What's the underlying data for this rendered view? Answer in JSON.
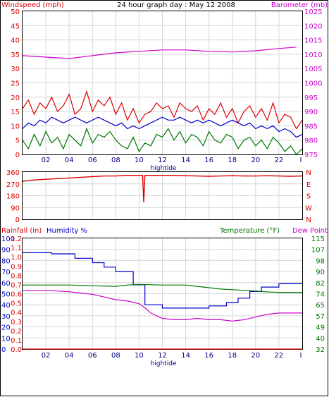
{
  "header": {
    "left_label": "Windspeed (mph)",
    "title": "24 hour graph day : May 12 2008",
    "right_label": "Barometer (mb)"
  },
  "colors": {
    "background": "#ffffff",
    "frame": "#000000",
    "grid": "#d6d6d6",
    "red": "#dd0000",
    "blue": "#0000cc",
    "green": "#007700",
    "magenta": "#cc00cc",
    "navy": "#000080"
  },
  "chart_data": [
    {
      "id": "wind-barometer",
      "type": "line",
      "title": "24 hour graph day : May 12 2008",
      "left_axis_label": "Windspeed (mph)",
      "right_axis_label": "Barometer (mb)",
      "x_tick_labels": [
        "02",
        "04",
        "06",
        "08",
        "10",
        "12",
        "14",
        "16",
        "18",
        "20",
        "22"
      ],
      "x_end_label": "I",
      "x_marker_label": "hightide",
      "xlim": [
        0,
        24
      ],
      "left_ylim": [
        0,
        50
      ],
      "left_ticks": [
        "0",
        "5",
        "10",
        "15",
        "20",
        "25",
        "30",
        "35",
        "40",
        "45",
        "50"
      ],
      "right_ylim": [
        975,
        1025
      ],
      "right_ticks": [
        "975",
        "980",
        "985",
        "990",
        "995",
        "1000",
        "1005",
        "1010",
        "1015",
        "1020",
        "1025"
      ],
      "grid": true,
      "series": [
        {
          "color": "#dd0000",
          "axis": "left",
          "x": [
            0.0,
            0.5,
            1.0,
            1.5,
            2.0,
            2.5,
            3.0,
            3.5,
            4.0,
            4.5,
            5.0,
            5.5,
            6.0,
            6.5,
            7.0,
            7.5,
            8.0,
            8.5,
            9.0,
            9.5,
            10.0,
            10.5,
            11.0,
            11.5,
            12.0,
            12.5,
            13.0,
            13.5,
            14.0,
            14.5,
            15.0,
            15.5,
            16.0,
            16.5,
            17.0,
            17.5,
            18.0,
            18.5,
            19.0,
            19.5,
            20.0,
            20.5,
            21.0,
            21.5,
            22.0,
            22.5,
            23.0,
            23.5,
            24.0
          ],
          "values": [
            16,
            19,
            14,
            18,
            16,
            20,
            15,
            17,
            21,
            14,
            16,
            22,
            15,
            19,
            17,
            20,
            14,
            18,
            12,
            16,
            11,
            14,
            15,
            18,
            16,
            17,
            13,
            18,
            16,
            15,
            17,
            12,
            16,
            14,
            18,
            13,
            16,
            11,
            15,
            17,
            13,
            16,
            12,
            18,
            11,
            14,
            13,
            9,
            12
          ]
        },
        {
          "color": "#0000cc",
          "axis": "left",
          "x": [
            0.0,
            0.5,
            1.0,
            1.5,
            2.0,
            2.5,
            3.0,
            3.5,
            4.0,
            4.5,
            5.0,
            5.5,
            6.0,
            6.5,
            7.0,
            7.5,
            8.0,
            8.5,
            9.0,
            9.5,
            10.0,
            10.5,
            11.0,
            11.5,
            12.0,
            12.5,
            13.0,
            13.5,
            14.0,
            14.5,
            15.0,
            15.5,
            16.0,
            16.5,
            17.0,
            17.5,
            18.0,
            18.5,
            19.0,
            19.5,
            20.0,
            20.5,
            21.0,
            21.5,
            22.0,
            22.5,
            23.0,
            23.5,
            24.0
          ],
          "values": [
            9,
            11,
            10,
            12,
            11,
            13,
            12,
            11,
            12,
            13,
            12,
            11,
            12,
            13,
            12,
            11,
            10,
            11,
            9,
            10,
            9,
            10,
            11,
            12,
            13,
            12,
            12,
            13,
            12,
            11,
            12,
            11,
            12,
            11,
            10,
            11,
            12,
            11,
            10,
            11,
            9,
            10,
            9,
            10,
            8,
            9,
            8,
            6,
            7
          ]
        },
        {
          "color": "#007700",
          "axis": "left",
          "x": [
            0.0,
            0.5,
            1.0,
            1.5,
            2.0,
            2.5,
            3.0,
            3.5,
            4.0,
            4.5,
            5.0,
            5.5,
            6.0,
            6.5,
            7.0,
            7.5,
            8.0,
            8.5,
            9.0,
            9.5,
            10.0,
            10.5,
            11.0,
            11.5,
            12.0,
            12.5,
            13.0,
            13.5,
            14.0,
            14.5,
            15.0,
            15.5,
            16.0,
            16.5,
            17.0,
            17.5,
            18.0,
            18.5,
            19.0,
            19.5,
            20.0,
            20.5,
            21.0,
            21.5,
            22.0,
            22.5,
            23.0,
            23.5,
            24.0
          ],
          "values": [
            5,
            2,
            7,
            3,
            8,
            4,
            6,
            2,
            7,
            5,
            3,
            9,
            4,
            7,
            6,
            8,
            5,
            3,
            2,
            6,
            1,
            4,
            3,
            7,
            6,
            9,
            5,
            8,
            4,
            7,
            6,
            3,
            8,
            5,
            4,
            7,
            6,
            2,
            5,
            6,
            3,
            5,
            2,
            6,
            4,
            1,
            3,
            0,
            2
          ]
        },
        {
          "color": "#cc00cc",
          "axis": "right",
          "x": [
            0,
            2,
            4,
            6,
            8,
            10,
            12,
            14,
            16,
            18,
            20,
            22,
            23.5
          ],
          "values": [
            1009.5,
            1009,
            1008.5,
            1009.5,
            1010.5,
            1011,
            1011.5,
            1011.5,
            1011,
            1010.8,
            1011.2,
            1012,
            1012.5
          ]
        }
      ]
    },
    {
      "id": "wind-direction",
      "type": "line",
      "left_ticks": [
        "0",
        "90",
        "180",
        "270",
        "360"
      ],
      "ylim": [
        0,
        360
      ],
      "right_labels": [
        "N",
        "W",
        "S",
        "E",
        "N"
      ],
      "series": [
        {
          "color": "#dd0000",
          "x": [
            0,
            1,
            2,
            3,
            4,
            5,
            6,
            7,
            8,
            9,
            10,
            10.3,
            10.4,
            10.5,
            11,
            12,
            13,
            14,
            15,
            16,
            17,
            18,
            19,
            20,
            21,
            22,
            23,
            24
          ],
          "values": [
            290,
            300,
            305,
            310,
            315,
            320,
            325,
            330,
            330,
            335,
            335,
            335,
            130,
            335,
            335,
            335,
            335,
            332,
            330,
            328,
            330,
            332,
            330,
            330,
            332,
            330,
            328,
            330
          ]
        }
      ]
    },
    {
      "id": "rain-humidity-temperature",
      "type": "line",
      "rain_label": "Rainfall (in)",
      "humidity_label": "Humidity %",
      "temperature_label": "Temperature (°F)",
      "dewpoint_label": "Dew Point",
      "x_tick_labels": [
        "02",
        "04",
        "06",
        "08",
        "10",
        "12",
        "14",
        "16",
        "18",
        "20",
        "22"
      ],
      "x_end_label": "I",
      "x_marker_label": "hightide",
      "humidity_ticks": [
        "0",
        "10",
        "20",
        "30",
        "40",
        "50",
        "60",
        "70",
        "80",
        "90",
        "100"
      ],
      "humidity_ylim": [
        0,
        100
      ],
      "rain_ticks": [
        "0.0",
        "0.1",
        "0.2",
        "0.3",
        "0.4",
        "0.5",
        "0.6",
        "0.7",
        "0.8",
        "0.9",
        "1.0",
        "1.1",
        "1.2"
      ],
      "rain_ylim": [
        0,
        1.2
      ],
      "temperature_ticks": [
        "32",
        "40",
        "49",
        "57",
        "65",
        "74",
        "82",
        "90",
        "98",
        "107",
        "115"
      ],
      "temperature_ylim": [
        32,
        115
      ],
      "series": [
        {
          "color": "#0000cc",
          "axis": "humidity",
          "x": [
            0,
            2.5,
            2.5,
            4.5,
            4.5,
            6,
            6,
            7,
            7,
            8,
            8,
            9.5,
            9.5,
            10.5,
            10.5,
            12,
            12,
            16,
            16,
            17.5,
            17.5,
            18.5,
            18.5,
            19.5,
            19.5,
            20.5,
            20.5,
            22,
            22,
            24
          ],
          "values": [
            87,
            87,
            86,
            86,
            82,
            82,
            78,
            78,
            74,
            74,
            70,
            70,
            58,
            58,
            40,
            40,
            37,
            37,
            39,
            39,
            42,
            42,
            46,
            46,
            52,
            52,
            56,
            56,
            59,
            59
          ]
        },
        {
          "color": "#cc00cc",
          "axis": "temperature",
          "x": [
            0,
            2,
            4,
            5,
            6,
            7,
            8,
            9,
            10,
            10.5,
            11,
            12,
            13,
            14,
            15,
            16,
            17,
            18,
            19,
            20,
            21,
            22,
            23,
            24
          ],
          "values": [
            76,
            76,
            75,
            74,
            73,
            71,
            69,
            68,
            66,
            63,
            59,
            55,
            54,
            54,
            55,
            54,
            54,
            53,
            54,
            56,
            58,
            59,
            59,
            59
          ]
        },
        {
          "color": "#007700",
          "axis": "temperature",
          "x": [
            0,
            2,
            4,
            6,
            8,
            9,
            10,
            12,
            13,
            14,
            15,
            16,
            17,
            18,
            19,
            20,
            21,
            22,
            23,
            24
          ],
          "values": [
            80,
            80,
            80,
            79.5,
            79,
            80,
            80.5,
            80,
            80,
            80,
            79,
            78,
            77,
            76.5,
            76,
            75.5,
            74.8,
            74.5,
            74.5,
            74.5
          ]
        },
        {
          "color": "#dd0000",
          "axis": "rain",
          "x": [
            0,
            24
          ],
          "values": [
            0,
            0
          ]
        }
      ]
    }
  ]
}
